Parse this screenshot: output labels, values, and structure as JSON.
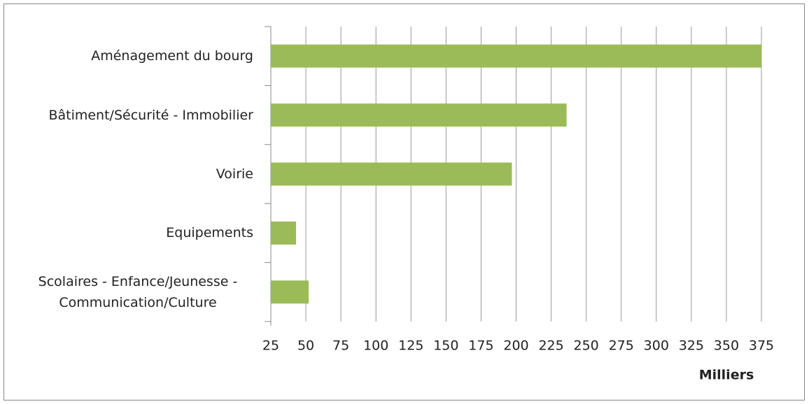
{
  "chart_data": {
    "type": "bar",
    "orientation": "horizontal",
    "categories": [
      "Aménagement du bourg",
      "Bâtiment/Sécurité - Immobilier",
      "Voirie",
      "Equipements",
      "Scolaires - Enfance/Jeunesse - Communication/Culture"
    ],
    "values": [
      375,
      236,
      197,
      43,
      52
    ],
    "color": "#9bbb59",
    "xlim": [
      25,
      375
    ],
    "xticks": [
      25,
      50,
      75,
      100,
      125,
      150,
      175,
      200,
      225,
      250,
      275,
      300,
      325,
      350,
      375
    ],
    "x_label": "Milliers",
    "grid": true
  }
}
